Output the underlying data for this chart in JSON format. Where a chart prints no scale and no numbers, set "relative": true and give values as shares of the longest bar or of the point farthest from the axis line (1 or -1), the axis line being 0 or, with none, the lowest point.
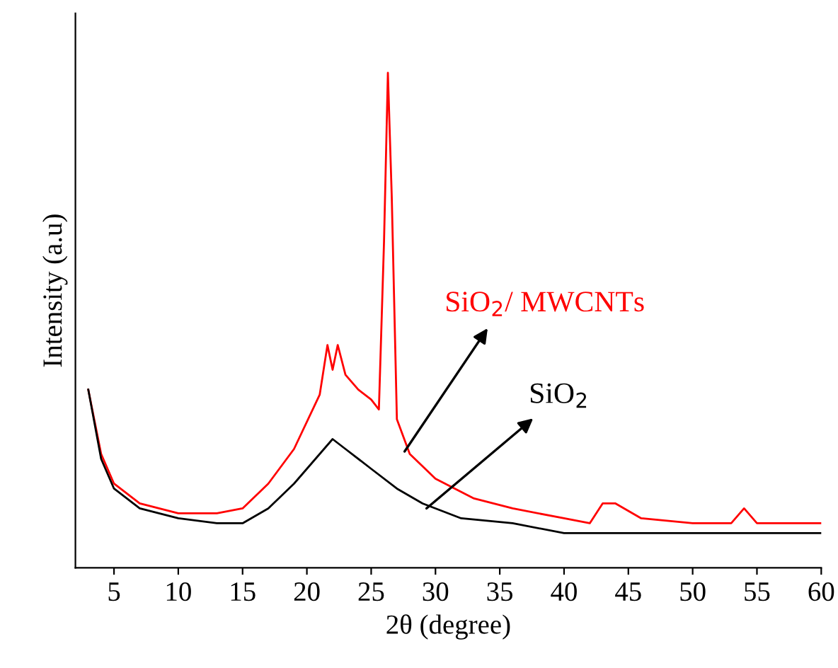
{
  "chart_data": {
    "type": "line",
    "relative": true,
    "xlabel": "2θ (degree)",
    "ylabel": "Intensity (a.u)",
    "xlim": [
      2,
      60
    ],
    "xticks": [
      5,
      10,
      15,
      20,
      25,
      30,
      35,
      40,
      45,
      50,
      55,
      60
    ],
    "grid": false,
    "legend": false,
    "marker": "none",
    "line_style": "solid",
    "series": [
      {
        "color": "#ff0000",
        "x": [
          3,
          4,
          5,
          7,
          10,
          13,
          15,
          17,
          19,
          21,
          21.6,
          22,
          22.4,
          23,
          24,
          25,
          25.6,
          26,
          26.3,
          26.6,
          27,
          28,
          30,
          33,
          36,
          40,
          42,
          43,
          44,
          46,
          50,
          53,
          54,
          55,
          60
        ],
        "values": [
          0.36,
          0.23,
          0.17,
          0.13,
          0.11,
          0.11,
          0.12,
          0.17,
          0.24,
          0.35,
          0.45,
          0.4,
          0.45,
          0.39,
          0.36,
          0.34,
          0.32,
          0.66,
          1.0,
          0.75,
          0.3,
          0.23,
          0.18,
          0.14,
          0.12,
          0.1,
          0.09,
          0.13,
          0.13,
          0.1,
          0.09,
          0.09,
          0.12,
          0.09,
          0.09
        ]
      },
      {
        "color": "#000000",
        "x": [
          3,
          4,
          5,
          7,
          10,
          13,
          15,
          17,
          19,
          21,
          22,
          23,
          25,
          27,
          29,
          32,
          36,
          40,
          45,
          50,
          55,
          60
        ],
        "values": [
          0.36,
          0.22,
          0.16,
          0.12,
          0.1,
          0.09,
          0.09,
          0.12,
          0.17,
          0.23,
          0.26,
          0.24,
          0.2,
          0.16,
          0.13,
          0.1,
          0.09,
          0.07,
          0.07,
          0.07,
          0.07,
          0.07
        ]
      }
    ],
    "annotations": [
      {
        "text": "SiO$_{2}$/ MWCNTs",
        "x": 27.6,
        "y": 0.235
      },
      {
        "text": "SiO$_{2}$",
        "x": 29.3,
        "y": 0.12
      }
    ]
  }
}
